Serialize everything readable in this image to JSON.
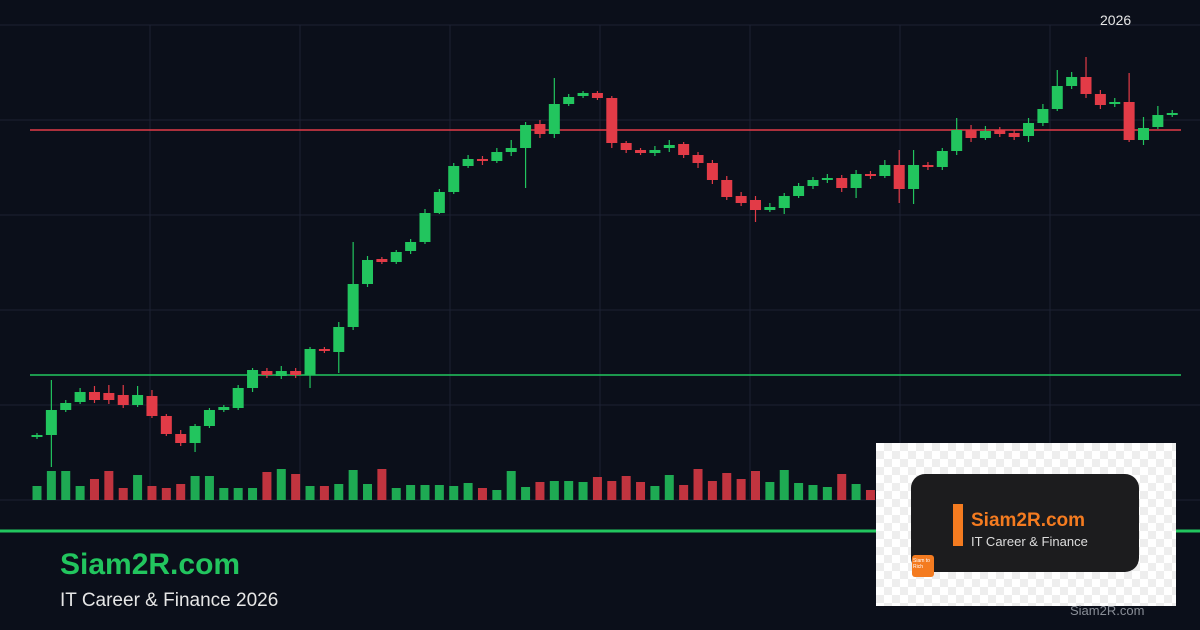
{
  "chart_data": {
    "type": "candlestick",
    "period_label": "2026",
    "open": [
      63,
      65,
      90,
      98,
      108,
      107,
      105,
      95,
      104,
      84,
      66,
      57,
      74,
      90,
      92,
      112,
      129,
      124,
      129,
      125,
      151,
      148,
      173,
      216,
      241,
      238,
      249,
      258,
      287,
      308,
      334,
      341,
      339,
      348,
      352,
      376,
      366,
      396,
      404,
      407,
      402,
      357,
      350,
      347,
      352,
      356,
      345,
      337,
      320,
      304,
      300,
      290,
      292,
      304,
      314,
      320,
      322,
      312,
      326,
      324,
      335,
      311,
      335,
      333,
      349,
      370,
      362,
      370,
      367,
      364,
      377,
      391,
      414,
      423,
      406,
      396,
      398,
      360,
      373,
      385
    ],
    "high": [
      67,
      120,
      100,
      112,
      114,
      115,
      115,
      114,
      110,
      86,
      70,
      76,
      92,
      95,
      115,
      132,
      132,
      134,
      132,
      153,
      153,
      178,
      258,
      244,
      243,
      250,
      261,
      291,
      311,
      337,
      345,
      344,
      352,
      360,
      378,
      380,
      422,
      406,
      409,
      409,
      404,
      359,
      352,
      354,
      360,
      358,
      348,
      340,
      324,
      308,
      304,
      297,
      307,
      317,
      323,
      326,
      325,
      330,
      329,
      340,
      350,
      350,
      338,
      352,
      382,
      375,
      374,
      373,
      370,
      382,
      396,
      430,
      428,
      443,
      410,
      402,
      427,
      383,
      394,
      390
    ],
    "low": [
      61,
      33,
      88,
      96,
      97,
      96,
      92,
      93,
      82,
      64,
      54,
      48,
      72,
      88,
      90,
      108,
      122,
      121,
      122,
      112,
      147,
      127,
      170,
      213,
      236,
      236,
      246,
      256,
      286,
      306,
      332,
      335,
      337,
      344,
      312,
      362,
      362,
      394,
      402,
      400,
      352,
      347,
      345,
      344,
      348,
      342,
      332,
      316,
      300,
      294,
      278,
      288,
      286,
      302,
      311,
      317,
      308,
      302,
      321,
      322,
      297,
      296,
      330,
      330,
      345,
      358,
      360,
      363,
      360,
      358,
      374,
      389,
      411,
      402,
      391,
      393,
      358,
      355,
      371,
      383
    ],
    "close": [
      65,
      90,
      97,
      108,
      100,
      100,
      95,
      105,
      84,
      66,
      57,
      74,
      90,
      93,
      112,
      130,
      125,
      129,
      125,
      151,
      149,
      173,
      216,
      240,
      238,
      248,
      258,
      287,
      308,
      334,
      341,
      339,
      348,
      352,
      375,
      366,
      396,
      403,
      407,
      402,
      357,
      350,
      347,
      350,
      355,
      345,
      337,
      320,
      303,
      297,
      290,
      293,
      304,
      314,
      320,
      322,
      312,
      326,
      324,
      335,
      311,
      335,
      333,
      349,
      370,
      362,
      369,
      366,
      363,
      377,
      391,
      414,
      423,
      406,
      395,
      398,
      360,
      372,
      385,
      387
    ],
    "volume": [
      14,
      29,
      29,
      14,
      21,
      29,
      12,
      25,
      14,
      12,
      16,
      24,
      24,
      12,
      12,
      12,
      28,
      31,
      26,
      14,
      14,
      16,
      30,
      16,
      31,
      12,
      15,
      15,
      15,
      14,
      17,
      12,
      10,
      29,
      13,
      18,
      19,
      19,
      18,
      23,
      19,
      24,
      18,
      14,
      25,
      15,
      31,
      19,
      27,
      21,
      29,
      18,
      30,
      17,
      15,
      13,
      26,
      16,
      10,
      23,
      null,
      null,
      null,
      null,
      null,
      null,
      null,
      null,
      null,
      null,
      null,
      null,
      null,
      null,
      null,
      null,
      null,
      null,
      null,
      null
    ],
    "ylim": [
      0,
      500
    ],
    "volume_lim": [
      0,
      100
    ],
    "up_color": "#22c55e",
    "down_color": "#e23b47",
    "reference_lines": [
      {
        "value": 370,
        "color": "#e23b47"
      },
      {
        "value": 125,
        "color": "#22c55e"
      }
    ],
    "grid": true
  },
  "branding": {
    "title": "Siam2R.com",
    "subtitle": "IT Career & Finance 2026"
  },
  "logo": {
    "title": "Siam2R.com",
    "subtitle": "IT Career & Finance",
    "badge": "Siam to Rich",
    "watermark": "Siam2R.com"
  }
}
